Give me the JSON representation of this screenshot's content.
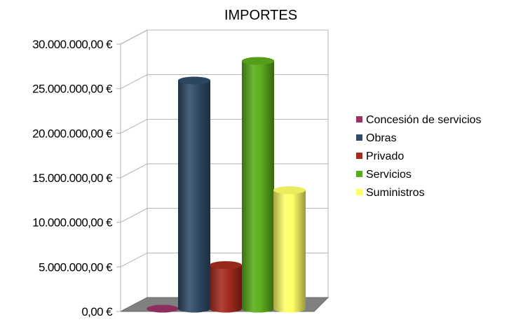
{
  "chart_data": {
    "type": "bar",
    "title": "IMPORTES",
    "xlabel": "",
    "ylabel": "",
    "three_d": true,
    "bar_shape": "cylinder",
    "ylim": [
      0,
      30000000
    ],
    "y_tick_values": [
      0,
      5000000,
      10000000,
      15000000,
      20000000,
      25000000,
      30000000
    ],
    "y_tick_labels": [
      "0,00 €",
      "5.000.000,00 €",
      "10.000.000,00 €",
      "15.000.000,00 €",
      "20.000.000,00 €",
      "25.000.000,00 €",
      "30.000.000,00 €"
    ],
    "grid": true,
    "legend_position": "right",
    "series": [
      {
        "name": "Concesión de servicios",
        "value": 0,
        "color": "#993366"
      },
      {
        "name": "Obras",
        "value": 25600000,
        "color": "#2f4c68"
      },
      {
        "name": "Privado",
        "value": 4900000,
        "color": "#a52a1e"
      },
      {
        "name": "Servicios",
        "value": 27800000,
        "color": "#5bac1c"
      },
      {
        "name": "Suministros",
        "value": 13300000,
        "color": "#ffff66"
      }
    ]
  }
}
